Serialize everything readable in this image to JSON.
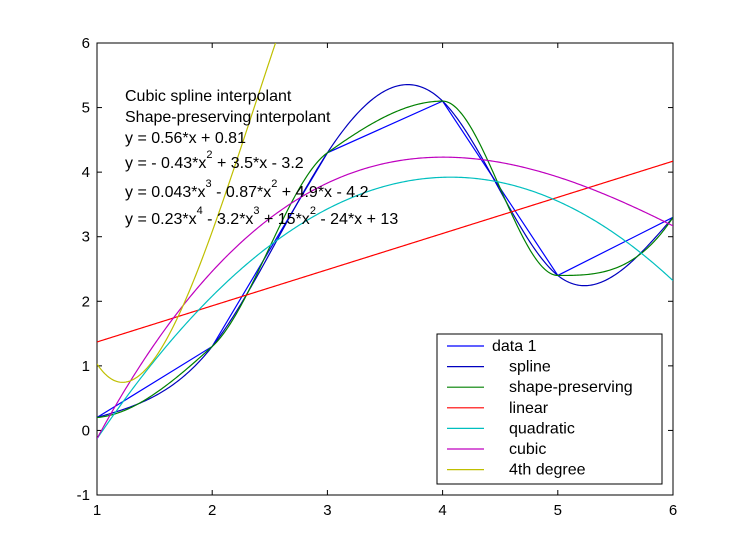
{
  "chart_data": {
    "type": "line",
    "title": "",
    "xlabel": "",
    "ylabel": "",
    "xlim": [
      1,
      6
    ],
    "ylim": [
      -1,
      6
    ],
    "xticks": [
      1,
      2,
      3,
      4,
      5,
      6
    ],
    "yticks": [
      -1,
      0,
      1,
      2,
      3,
      4,
      5,
      6
    ],
    "grid": false,
    "legend_position": "bottom-right",
    "data_points": {
      "x": [
        1,
        2,
        3,
        4,
        5,
        6
      ],
      "y": [
        0.2,
        1.3,
        4.3,
        5.1,
        2.4,
        3.3
      ]
    },
    "series": [
      {
        "name": "data 1",
        "kind": "data",
        "color": "#0000ff"
      },
      {
        "name": "spline",
        "kind": "spline",
        "color": "#0000bf"
      },
      {
        "name": "shape-preserving",
        "kind": "pchip",
        "color": "#008000"
      },
      {
        "name": "linear",
        "kind": "poly",
        "coeffs": [
          0.56,
          0.81
        ],
        "color": "#ff0000"
      },
      {
        "name": "quadratic",
        "kind": "poly",
        "coeffs": [
          -0.43,
          3.5,
          -3.2
        ],
        "color": "#00bfbf"
      },
      {
        "name": "cubic",
        "kind": "poly",
        "coeffs": [
          0.043,
          -0.87,
          4.9,
          -4.2
        ],
        "color": "#bf00bf"
      },
      {
        "name": "4th degree",
        "kind": "poly",
        "coeffs": [
          0.23,
          -3.2,
          15,
          -24,
          13
        ],
        "color": "#bfbf00"
      }
    ],
    "annotations": [
      "Cubic spline interpolant",
      "Shape-preserving interpolant",
      "y = 0.56*x + 0.81",
      "y = - 0.43*x^2 + 3.5*x - 3.2",
      "y = 0.043*x^3 - 0.87*x^2 + 4.9*x - 4.2",
      "y = 0.23*x^4 - 3.2*x^3 + 15*x^2 - 24*x + 13"
    ]
  }
}
